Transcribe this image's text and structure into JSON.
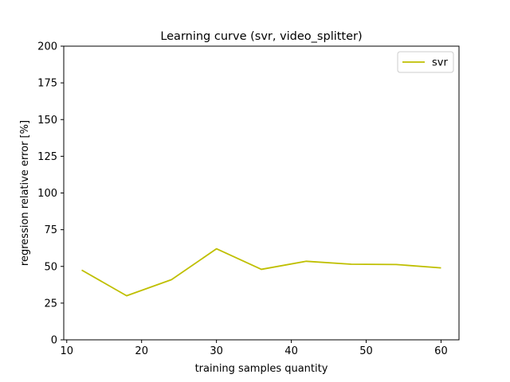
{
  "chart_data": {
    "type": "line",
    "title": "Learning curve (svr, video_splitter)",
    "xlabel": "training samples quantity",
    "ylabel": "regression relative error [%]",
    "xlim": [
      9.6,
      62.4
    ],
    "ylim": [
      0,
      200
    ],
    "xticks": [
      10,
      20,
      30,
      40,
      50,
      60
    ],
    "yticks": [
      0,
      25,
      50,
      75,
      100,
      125,
      150,
      175,
      200
    ],
    "grid": false,
    "legend_position": "top-right",
    "series": [
      {
        "name": "svr",
        "color": "#bfbf00",
        "x": [
          12,
          18,
          24,
          30,
          36,
          42,
          48,
          54,
          60
        ],
        "y": [
          47.5,
          30,
          41,
          62,
          48,
          53.5,
          51.5,
          51.3,
          49
        ]
      }
    ]
  }
}
